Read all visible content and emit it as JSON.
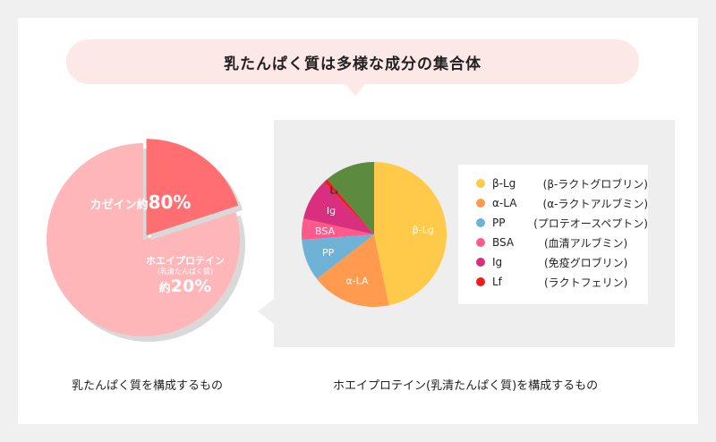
{
  "header": {
    "title": "乳たんぱく質は多様な成分の集合体"
  },
  "chart_data": [
    {
      "type": "pie",
      "caption": "乳たんぱく質を構成するもの",
      "slices": [
        {
          "name": "カゼイン",
          "label": "カゼイン約80%",
          "prefix": "約",
          "value": 80,
          "color": "#ffb6b9"
        },
        {
          "name": "ホエイプロテイン",
          "sub": "(乳清たんぱく質)",
          "prefix": "約",
          "value": 20,
          "color": "#ff6f72"
        }
      ]
    },
    {
      "type": "pie",
      "caption": "ホエイプロテイン(乳清たんぱく質)を構成するもの",
      "slices": [
        {
          "abbr": "β-Lg",
          "name": "(β-ラクトグロブリン)",
          "value": 50,
          "color": "#ffc94a"
        },
        {
          "abbr": "α-LA",
          "name": "(α-ラクトアルブミン)",
          "value": 19,
          "color": "#ff9a4e"
        },
        {
          "abbr": "PP",
          "name": "(プロテオースペプトン)",
          "value": 10,
          "color": "#6eb3d6"
        },
        {
          "abbr": "BSA",
          "name": "(血清アルブミン)",
          "value": 5,
          "color": "#ff5a8a"
        },
        {
          "abbr": "Ig",
          "name": "(免疫グロブリン)",
          "value": 10,
          "color": "#d8307f"
        },
        {
          "abbr": "Lf",
          "name": "(ラクトフェリン)",
          "value": 1,
          "color": "#ee1c1c"
        },
        {
          "abbr": "",
          "name": "",
          "value": 12,
          "color": "#5c8a3f"
        }
      ]
    }
  ]
}
